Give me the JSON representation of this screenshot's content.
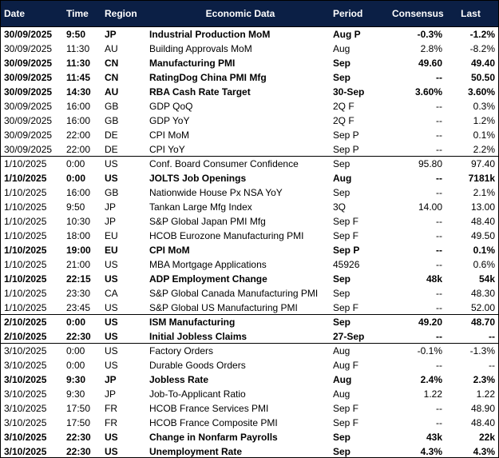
{
  "table": {
    "columns": [
      "Date",
      "Time",
      "Region",
      "Economic Data",
      "Period",
      "Consensus",
      "Last"
    ],
    "rows": [
      {
        "cells": [
          "30/09/2025",
          "9:50",
          "JP",
          "Industrial Production MoM",
          "Aug P",
          "-0.3%",
          "-1.2%"
        ],
        "bold": true
      },
      {
        "cells": [
          "30/09/2025",
          "11:30",
          "AU",
          "Building Approvals MoM",
          "Aug",
          "2.8%",
          "-8.2%"
        ],
        "bold": false
      },
      {
        "cells": [
          "30/09/2025",
          "11:30",
          "CN",
          "Manufacturing PMI",
          "Sep",
          "49.60",
          "49.40"
        ],
        "bold": true
      },
      {
        "cells": [
          "30/09/2025",
          "11:45",
          "CN",
          "RatingDog China PMI Mfg",
          "Sep",
          "--",
          "50.50"
        ],
        "bold": true
      },
      {
        "cells": [
          "30/09/2025",
          "14:30",
          "AU",
          "RBA Cash Rate Target",
          "30-Sep",
          "3.60%",
          "3.60%"
        ],
        "bold": true
      },
      {
        "cells": [
          "30/09/2025",
          "16:00",
          "GB",
          "GDP QoQ",
          "2Q F",
          "--",
          "0.3%"
        ],
        "bold": false
      },
      {
        "cells": [
          "30/09/2025",
          "16:00",
          "GB",
          "GDP YoY",
          "2Q F",
          "--",
          "1.2%"
        ],
        "bold": false
      },
      {
        "cells": [
          "30/09/2025",
          "22:00",
          "DE",
          "CPI MoM",
          "Sep P",
          "--",
          "0.1%"
        ],
        "bold": false
      },
      {
        "cells": [
          "30/09/2025",
          "22:00",
          "DE",
          "CPI YoY",
          "Sep P",
          "--",
          "2.2%"
        ],
        "bold": false
      },
      {
        "cells": [
          "1/10/2025",
          "0:00",
          "US",
          "Conf. Board Consumer Confidence",
          "Sep",
          "95.80",
          "97.40"
        ],
        "bold": false
      },
      {
        "cells": [
          "1/10/2025",
          "0:00",
          "US",
          "JOLTS Job Openings",
          "Aug",
          "--",
          "7181k"
        ],
        "bold": true
      },
      {
        "cells": [
          "1/10/2025",
          "16:00",
          "GB",
          "Nationwide House Px NSA YoY",
          "Sep",
          "--",
          "2.1%"
        ],
        "bold": false
      },
      {
        "cells": [
          "1/10/2025",
          "9:50",
          "JP",
          "Tankan Large Mfg Index",
          "3Q",
          "14.00",
          "13.00"
        ],
        "bold": false
      },
      {
        "cells": [
          "1/10/2025",
          "10:30",
          "JP",
          "S&P Global Japan PMI Mfg",
          "Sep F",
          "--",
          "48.40"
        ],
        "bold": false
      },
      {
        "cells": [
          "1/10/2025",
          "18:00",
          "EU",
          "HCOB Eurozone Manufacturing PMI",
          "Sep F",
          "--",
          "49.50"
        ],
        "bold": false
      },
      {
        "cells": [
          "1/10/2025",
          "19:00",
          "EU",
          "CPI MoM",
          "Sep P",
          "--",
          "0.1%"
        ],
        "bold": true
      },
      {
        "cells": [
          "1/10/2025",
          "21:00",
          "US",
          "MBA Mortgage Applications",
          "45926",
          "--",
          "0.6%"
        ],
        "bold": false
      },
      {
        "cells": [
          "1/10/2025",
          "22:15",
          "US",
          "ADP Employment Change",
          "Sep",
          "48k",
          "54k"
        ],
        "bold": true
      },
      {
        "cells": [
          "1/10/2025",
          "23:30",
          "CA",
          "S&P Global Canada Manufacturing PMI",
          "Sep",
          "--",
          "48.30"
        ],
        "bold": false
      },
      {
        "cells": [
          "1/10/2025",
          "23:45",
          "US",
          "S&P Global US Manufacturing PMI",
          "Sep F",
          "--",
          "52.00"
        ],
        "bold": false
      },
      {
        "cells": [
          "2/10/2025",
          "0:00",
          "US",
          "ISM Manufacturing",
          "Sep",
          "49.20",
          "48.70"
        ],
        "bold": true
      },
      {
        "cells": [
          "2/10/2025",
          "22:30",
          "US",
          "Initial Jobless Claims",
          "27-Sep",
          "--",
          "--"
        ],
        "bold": true
      },
      {
        "cells": [
          "3/10/2025",
          "0:00",
          "US",
          "Factory Orders",
          "Aug",
          "-0.1%",
          "-1.3%"
        ],
        "bold": false
      },
      {
        "cells": [
          "3/10/2025",
          "0:00",
          "US",
          "Durable Goods Orders",
          "Aug F",
          "--",
          "--"
        ],
        "bold": false
      },
      {
        "cells": [
          "3/10/2025",
          "9:30",
          "JP",
          "Jobless Rate",
          "Aug",
          "2.4%",
          "2.3%"
        ],
        "bold": true
      },
      {
        "cells": [
          "3/10/2025",
          "9:30",
          "JP",
          "Job-To-Applicant Ratio",
          "Aug",
          "1.22",
          "1.22"
        ],
        "bold": false
      },
      {
        "cells": [
          "3/10/2025",
          "17:50",
          "FR",
          "HCOB France Services PMI",
          "Sep F",
          "--",
          "48.90"
        ],
        "bold": false
      },
      {
        "cells": [
          "3/10/2025",
          "17:50",
          "FR",
          "HCOB France Composite PMI",
          "Sep F",
          "--",
          "48.40"
        ],
        "bold": false
      },
      {
        "cells": [
          "3/10/2025",
          "22:30",
          "US",
          "Change in Nonfarm Payrolls",
          "Sep",
          "43k",
          "22k"
        ],
        "bold": true
      },
      {
        "cells": [
          "3/10/2025",
          "22:30",
          "US",
          "Unemployment Rate",
          "Sep",
          "4.3%",
          "4.3%"
        ],
        "bold": true
      }
    ]
  }
}
